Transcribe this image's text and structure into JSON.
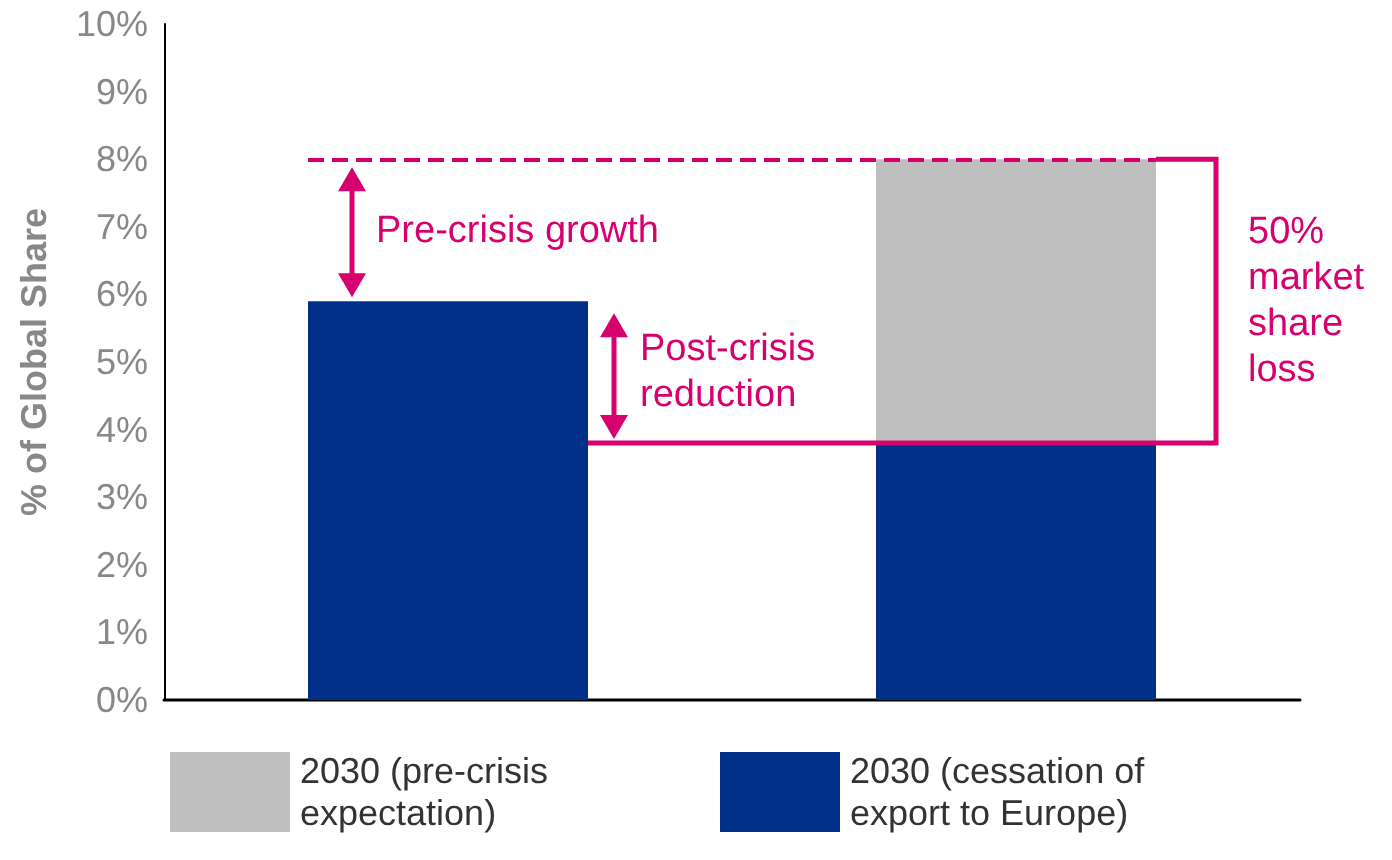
{
  "chart_data": {
    "type": "bar",
    "ylabel": "% of Global Share",
    "categories": [
      null,
      null
    ],
    "stacked": true,
    "series": [
      {
        "name": "2030 (cessation of export to Europe)",
        "color": "#003087",
        "values": [
          5.9,
          3.8
        ]
      },
      {
        "name": "2030 (pre-crisis expectation)",
        "color": "#bfbfbf",
        "values": [
          null,
          4.2
        ]
      }
    ],
    "ylim": [
      0,
      10
    ],
    "yticks": [
      {
        "value": 0,
        "label": "0%"
      },
      {
        "value": 1,
        "label": "1%"
      },
      {
        "value": 2,
        "label": "2%"
      },
      {
        "value": 3,
        "label": "3%"
      },
      {
        "value": 4,
        "label": "4%"
      },
      {
        "value": 5,
        "label": "5%"
      },
      {
        "value": 6,
        "label": "6%"
      },
      {
        "value": 7,
        "label": "7%"
      },
      {
        "value": 8,
        "label": "8%"
      },
      {
        "value": 9,
        "label": "9%"
      },
      {
        "value": 10,
        "label": "10%"
      }
    ],
    "ref_lines": [
      {
        "axis": "y",
        "value": 8,
        "color": "#d6006f",
        "line_style": "dashed"
      }
    ],
    "annotations": [
      "Pre-crisis growth",
      "Post-crisis reduction",
      "50% market share loss"
    ],
    "grid": false,
    "legend": "bottom"
  }
}
